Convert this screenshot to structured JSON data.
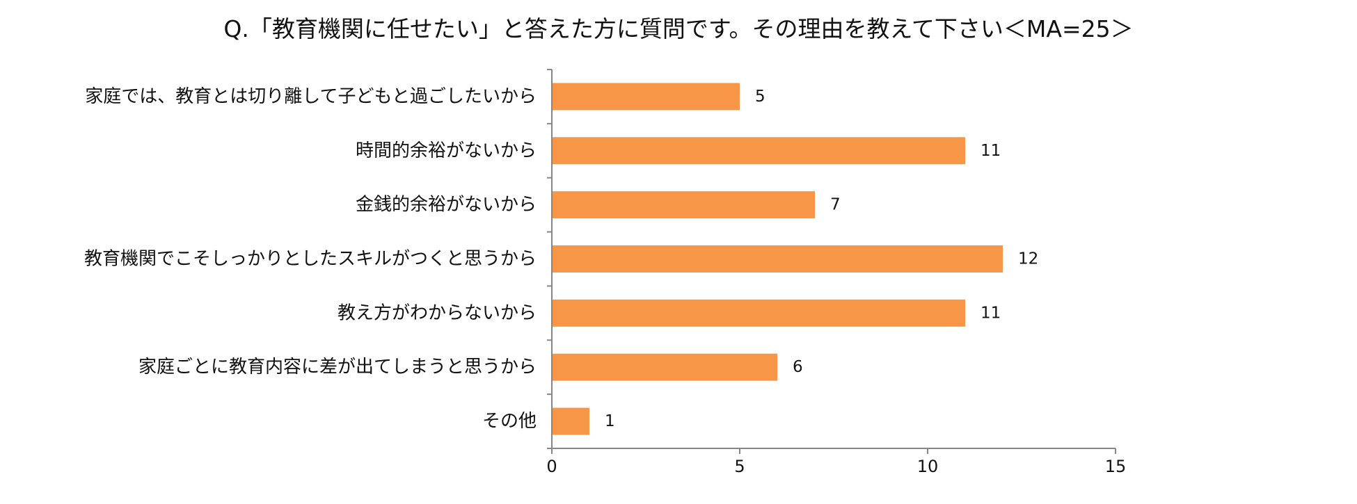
{
  "chart_data": {
    "type": "bar",
    "orientation": "horizontal",
    "title": "Q.「教育機関に任せたい」と答えた方に質問です。その理由を教えて下さい＜MA=25＞",
    "categories": [
      "家庭では、教育とは切り離して子どもと過ごしたいから",
      "時間的余裕がないから",
      "金銭的余裕がないから",
      "教育機関でこそしっかりとしたスキルがつくと思うから",
      "教え方がわからないから",
      "家庭ごとに教育内容に差が出てしまうと思うから",
      "その他"
    ],
    "values": [
      5,
      11,
      7,
      12,
      11,
      6,
      1
    ],
    "data_labels": [
      "5",
      "11",
      "7",
      "12",
      "11",
      "6",
      "1"
    ],
    "xlim": [
      0,
      15
    ],
    "ticks": [
      0,
      5,
      10,
      15
    ],
    "tick_labels": [
      "0",
      "5",
      "10",
      "15"
    ],
    "xlabel": "",
    "ylabel": "",
    "grid": false,
    "legend": "none",
    "bar_color": "#F79646",
    "axis_color": "#868686"
  }
}
